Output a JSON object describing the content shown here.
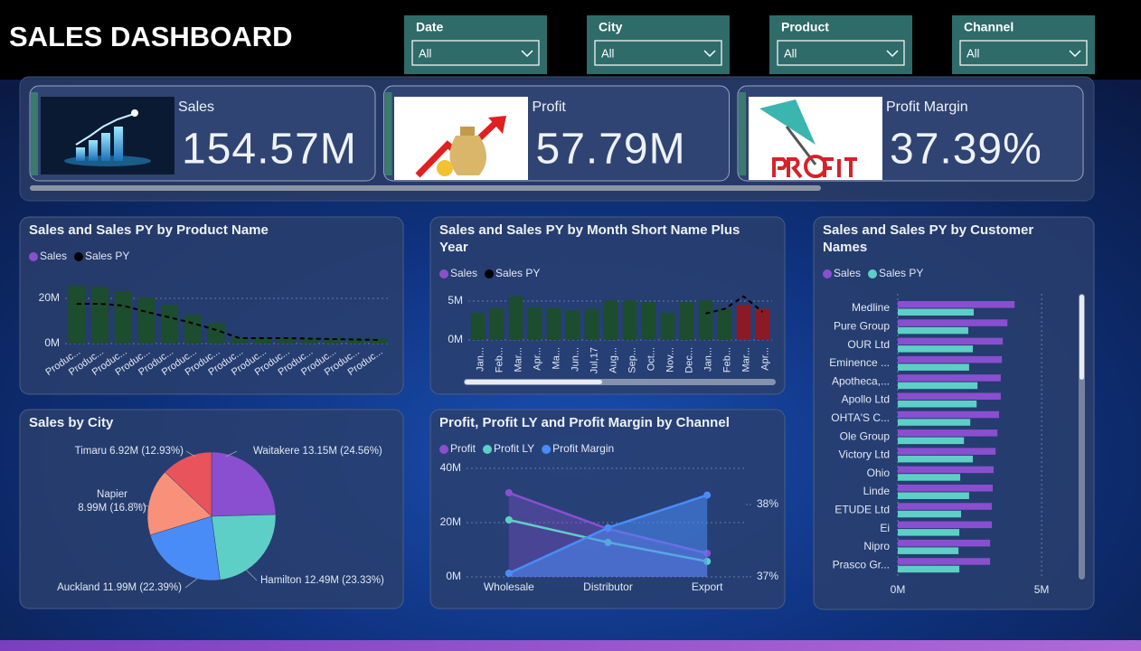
{
  "header": {
    "title": "SALES DASHBOARD"
  },
  "filters": [
    {
      "label": "Date",
      "value": "All"
    },
    {
      "label": "City",
      "value": "All"
    },
    {
      "label": "Product",
      "value": "All"
    },
    {
      "label": "Channel",
      "value": "All"
    }
  ],
  "kpis": [
    {
      "label": "Sales",
      "value": "154.57M"
    },
    {
      "label": "Profit",
      "value": "57.79M"
    },
    {
      "label": "Profit Margin",
      "value": "37.39%"
    }
  ],
  "chart_data": [
    {
      "type": "bar",
      "title": "Sales and Sales PY by Product Name",
      "categories": [
        "Produc...",
        "Produc...",
        "Produc...",
        "Produc...",
        "Produc...",
        "Produc...",
        "Produc...",
        "Produc...",
        "Produc...",
        "Produc...",
        "Produc...",
        "Produc...",
        "Produc...",
        "Produc..."
      ],
      "series": [
        {
          "name": "Sales",
          "color": "#8a4fd0",
          "mark": "bar",
          "bar_colors": [
            "#1d4d2f",
            "#1d4d2f",
            "#1d4d2f",
            "#1d4d2f",
            "#1d4d2f",
            "#1d4d2f",
            "#1d4d2f",
            "#1d4d2f",
            "#1d4d2f",
            "#1d4d2f",
            "#1d4d2f",
            "#1d4d2f",
            "#1d4d2f",
            "#1d4d2f"
          ],
          "values": [
            25600000,
            25200000,
            23200000,
            20400000,
            17200000,
            12800000,
            9200000,
            2800000,
            2800000,
            2600000,
            2400000,
            2400000,
            2200000,
            2200000
          ]
        },
        {
          "name": "Sales PY",
          "color": "#000000",
          "mark": "line",
          "dashed": true,
          "values": [
            17600000,
            17600000,
            16800000,
            14000000,
            11600000,
            9000000,
            6000000,
            2400000,
            2400000,
            2400000,
            2200000,
            2000000,
            1800000,
            1600000
          ]
        }
      ],
      "ylim": [
        0,
        27000000
      ],
      "yticks": [
        {
          "value": 0,
          "label": "0M"
        },
        {
          "value": 20000000,
          "label": "20M"
        }
      ],
      "grid": true
    },
    {
      "type": "bar",
      "title": "Sales and Sales PY by Month Short Name Plus Year",
      "categories": [
        "Jan...",
        "Feb...",
        "Mar...",
        "Apr...",
        "Ma...",
        "Jun...",
        "Jul,17",
        "Aug...",
        "Sep...",
        "Oct...",
        "Nov...",
        "Dec...",
        "Jan...",
        "Feb...",
        "Mar...",
        "Apr..."
      ],
      "series": [
        {
          "name": "Sales",
          "color": "#8a4fd0",
          "mark": "bar",
          "bar_colors": [
            "#1d4d2f",
            "#1d4d2f",
            "#1d4d2f",
            "#1d4d2f",
            "#1d4d2f",
            "#1d4d2f",
            "#1d4d2f",
            "#1d4d2f",
            "#1d4d2f",
            "#1d4d2f",
            "#1d4d2f",
            "#1d4d2f",
            "#1d4d2f",
            "#1d4d2f",
            "#8b1a24",
            "#8b1a24"
          ],
          "values": [
            3500000,
            4100000,
            5600000,
            4200000,
            4100000,
            3800000,
            4000000,
            5100000,
            5100000,
            4900000,
            3500000,
            4900000,
            5100000,
            4000000,
            4500000,
            4000000
          ]
        },
        {
          "name": "Sales PY",
          "color": "#000000",
          "mark": "line",
          "dashed": true,
          "values": [
            null,
            null,
            null,
            null,
            null,
            null,
            null,
            null,
            null,
            null,
            null,
            null,
            3400000,
            4000000,
            5600000,
            3600000
          ]
        }
      ],
      "ylim": [
        0,
        6500000
      ],
      "yticks": [
        {
          "value": 0,
          "label": "0M"
        },
        {
          "value": 5000000,
          "label": "5M"
        }
      ],
      "grid": true
    },
    {
      "type": "hbar",
      "title": "Sales and Sales PY by Customer Names",
      "categories": [
        "Medline",
        "Pure Group",
        "OUR Ltd",
        "Eminence ...",
        "Apotheca,...",
        "Apollo Ltd",
        "OHTA'S C...",
        "Ole Group",
        "Victory Ltd",
        "Ohio",
        "Linde",
        "ETUDE Ltd",
        "Ei",
        "Nipro",
        "Prasco Gr..."
      ],
      "series": [
        {
          "name": "Sales",
          "color": "#8a4fd0",
          "values": [
            4060000,
            3810000,
            3650000,
            3620000,
            3580000,
            3580000,
            3520000,
            3460000,
            3400000,
            3330000,
            3300000,
            3270000,
            3270000,
            3210000,
            3210000
          ]
        },
        {
          "name": "Sales PY",
          "color": "#5ecfc6",
          "values": [
            2640000,
            2450000,
            2610000,
            2480000,
            2770000,
            2740000,
            2520000,
            2300000,
            2610000,
            2170000,
            2480000,
            2200000,
            2140000,
            2110000,
            2140000
          ]
        }
      ],
      "xlim": [
        0,
        5500000
      ],
      "xticks": [
        {
          "value": 0,
          "label": "0M"
        },
        {
          "value": 5000000,
          "label": "5M"
        }
      ],
      "grid": true
    },
    {
      "type": "pie",
      "title": "Sales by City",
      "categories": [
        "Waitakere",
        "Hamilton",
        "Auckland",
        "Napier",
        "Timaru"
      ],
      "values": [
        13150000,
        12490000,
        11990000,
        8990000,
        6920000
      ],
      "value_labels": [
        "13.15M (24.56%)",
        "12.49M (23.33%)",
        "11.99M (22.39%)",
        "8.99M (16.8%)",
        "6.92M (12.93%)"
      ],
      "colors": [
        "#8a4fd0",
        "#5ecfc6",
        "#4a8cf7",
        "#f9917a",
        "#e8535c"
      ]
    },
    {
      "type": "line",
      "title": "Profit, Profit LY and Profit Margin by Channel",
      "categories": [
        "Wholesale",
        "Distributor",
        "Export"
      ],
      "series": [
        {
          "name": "Profit",
          "color": "#8a4fd0",
          "area": true,
          "values": [
            31000000,
            17700000,
            8700000
          ]
        },
        {
          "name": "Profit LY",
          "color": "#5ecfc6",
          "values": [
            21000000,
            12700000,
            5700000
          ]
        },
        {
          "name": "Profit Margin",
          "color": "#4a8cf7",
          "area": true,
          "axis": "y2",
          "values": [
            37.05,
            37.68,
            38.13
          ]
        }
      ],
      "ylim": [
        0,
        40000000
      ],
      "yticks": [
        {
          "value": 0,
          "label": "0M"
        },
        {
          "value": 20000000,
          "label": "20M"
        },
        {
          "value": 40000000,
          "label": "40M"
        }
      ],
      "y2lim": [
        37,
        38.5
      ],
      "y2ticks": [
        {
          "value": 37,
          "label": "37%"
        },
        {
          "value": 38,
          "label": "38%"
        }
      ],
      "grid": true
    }
  ]
}
